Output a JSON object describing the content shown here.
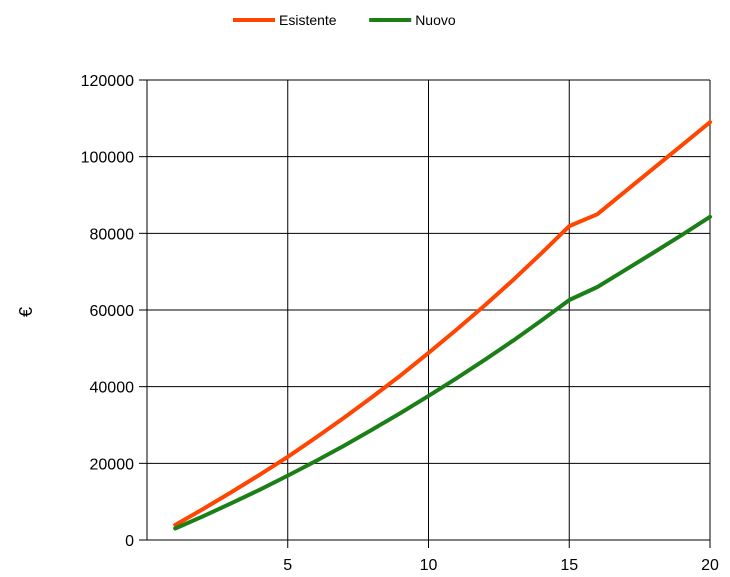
{
  "chart_data": {
    "type": "line",
    "title": "",
    "xlabel": "",
    "ylabel": "€",
    "xlim": [
      0,
      20
    ],
    "ylim": [
      0,
      120000
    ],
    "x_ticks": [
      5,
      10,
      15,
      20
    ],
    "y_ticks": [
      0,
      20000,
      40000,
      60000,
      80000,
      100000,
      120000
    ],
    "grid": true,
    "legend_position": "top-center",
    "x": [
      1,
      2,
      3,
      4,
      5,
      6,
      7,
      8,
      9,
      10,
      11,
      12,
      13,
      14,
      15,
      16,
      17,
      18,
      19,
      20
    ],
    "series": [
      {
        "name": "Esistente",
        "color": "#ff4500",
        "values": [
          3900,
          8100,
          12500,
          17000,
          21700,
          26700,
          31900,
          37300,
          42900,
          48800,
          54900,
          61200,
          67800,
          74700,
          81900,
          85000,
          91000,
          97000,
          103000,
          109000
        ]
      },
      {
        "name": "Nuovo",
        "color": "#1a7f16",
        "values": [
          3000,
          6200,
          9600,
          13100,
          16800,
          20600,
          24600,
          28800,
          33100,
          37600,
          42200,
          47000,
          52000,
          57200,
          62600,
          66000,
          70500,
          75000,
          79600,
          84300
        ]
      }
    ]
  }
}
